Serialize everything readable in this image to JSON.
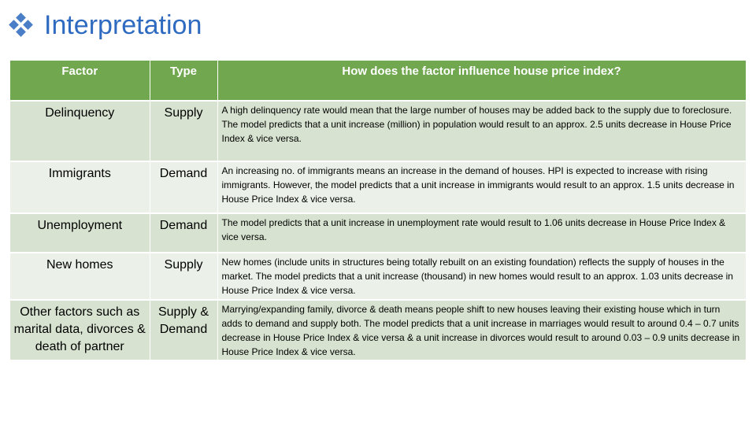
{
  "slide": {
    "title": "Interpretation",
    "bullet_icon": "diamond-bullet-icon"
  },
  "table": {
    "headers": {
      "factor": "Factor",
      "type": "Type",
      "influence": "How does the factor influence house price index?"
    },
    "rows": [
      {
        "factor": "Delinquency",
        "type": "Supply",
        "description": "A high delinquency rate would mean that the large number of houses may be added back to the supply due to foreclosure. The model predicts that a unit increase (million) in population would result to an approx. 2.5 units decrease in House Price Index & vice versa."
      },
      {
        "factor": "Immigrants",
        "type": "Demand",
        "description": "An increasing no. of immigrants means an increase in the demand of houses. HPI is expected to increase with rising immigrants. However, the model predicts that a unit increase in immigrants would result to an approx. 1.5  units decrease in House Price Index & vice versa."
      },
      {
        "factor": "Unemployment",
        "type": "Demand",
        "description": "The model predicts that a unit increase in unemployment rate would result to 1.06  units decrease in House Price Index & vice versa."
      },
      {
        "factor": "New homes",
        "type": "Supply",
        "description": "New homes (include units in structures being totally rebuilt on an existing foundation) reflects the supply of houses in the market. The model predicts that a unit increase (thousand) in new homes would result to an approx. 1.03 units decrease in House Price Index & vice versa."
      },
      {
        "factor": "Other factors such as marital data, divorces & death of partner",
        "type": "Supply & Demand",
        "description": "Marrying/expanding family, divorce & death means people shift to new houses leaving their existing house which in turn adds to demand and supply both. The model predicts that a unit increase in marriages would result to around 0.4 – 0.7 units decrease in House Price Index & vice versa & a unit increase in divorces would result to around 0.03 – 0.9 units decrease in House Price Index & vice versa."
      }
    ]
  },
  "colors": {
    "title": "#2e6bc0",
    "header_bg": "#70a74f",
    "row_odd": "#d7e3d0",
    "row_even": "#ebf1e8"
  }
}
